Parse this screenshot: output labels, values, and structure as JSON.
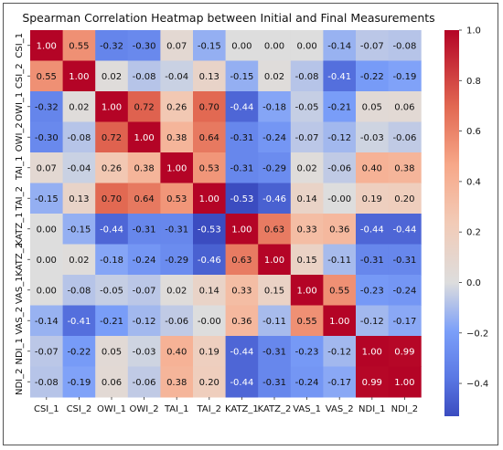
{
  "chart_data": {
    "type": "heatmap",
    "title": "Spearman Correlation Heatmap between Initial and Final Measurements",
    "xlabel": "",
    "ylabel": "",
    "labels": [
      "CSI_1",
      "CSI_2",
      "OWI_1",
      "OWI_2",
      "TAI_1",
      "TAI_2",
      "KATZ_1",
      "KATZ_2",
      "VAS_1",
      "VAS_2",
      "NDI_1",
      "NDI_2"
    ],
    "values": [
      [
        1.0,
        0.55,
        -0.32,
        -0.3,
        0.07,
        -0.15,
        0.0,
        0.0,
        0.0,
        -0.14,
        -0.07,
        -0.08
      ],
      [
        0.55,
        1.0,
        0.02,
        -0.08,
        -0.04,
        0.13,
        -0.15,
        0.02,
        -0.08,
        -0.41,
        -0.22,
        -0.19
      ],
      [
        -0.32,
        0.02,
        1.0,
        0.72,
        0.26,
        0.7,
        -0.44,
        -0.18,
        -0.05,
        -0.21,
        0.05,
        0.06
      ],
      [
        -0.3,
        -0.08,
        0.72,
        1.0,
        0.38,
        0.64,
        -0.31,
        -0.24,
        -0.07,
        -0.12,
        -0.03,
        -0.06
      ],
      [
        0.07,
        -0.04,
        0.26,
        0.38,
        1.0,
        0.53,
        -0.31,
        -0.29,
        0.02,
        -0.06,
        0.4,
        0.38
      ],
      [
        -0.15,
        0.13,
        0.7,
        0.64,
        0.53,
        1.0,
        -0.53,
        -0.46,
        0.14,
        -0.0,
        0.19,
        0.2
      ],
      [
        0.0,
        -0.15,
        -0.44,
        -0.31,
        -0.31,
        -0.53,
        1.0,
        0.63,
        0.33,
        0.36,
        -0.44,
        -0.44
      ],
      [
        0.0,
        0.02,
        -0.18,
        -0.24,
        -0.29,
        -0.46,
        0.63,
        1.0,
        0.15,
        -0.11,
        -0.31,
        -0.31
      ],
      [
        0.0,
        -0.08,
        -0.05,
        -0.07,
        0.02,
        0.14,
        0.33,
        0.15,
        1.0,
        0.55,
        -0.23,
        -0.24
      ],
      [
        -0.14,
        -0.41,
        -0.21,
        -0.12,
        -0.06,
        -0.0,
        0.36,
        -0.11,
        0.55,
        1.0,
        -0.12,
        -0.17
      ],
      [
        -0.07,
        -0.22,
        0.05,
        -0.03,
        0.4,
        0.19,
        -0.44,
        -0.31,
        -0.23,
        -0.12,
        1.0,
        0.99
      ],
      [
        -0.08,
        -0.19,
        0.06,
        -0.06,
        0.38,
        0.2,
        -0.44,
        -0.31,
        -0.24,
        -0.17,
        0.99,
        1.0
      ]
    ],
    "colorbar": {
      "range": [
        -0.53,
        1.0
      ],
      "ticks": [
        1.0,
        0.8,
        0.6,
        0.4,
        0.2,
        0.0,
        -0.2,
        -0.4
      ],
      "tick_labels": [
        "1.0",
        "0.8",
        "0.6",
        "0.4",
        "0.2",
        "0.0",
        "−0.2",
        "−0.4"
      ],
      "colormap": "coolwarm",
      "colors": {
        "low": "#3b4cc0",
        "mid": "#dddddd",
        "high": "#b40426"
      }
    },
    "grid": false,
    "legend": "colorbar right"
  }
}
